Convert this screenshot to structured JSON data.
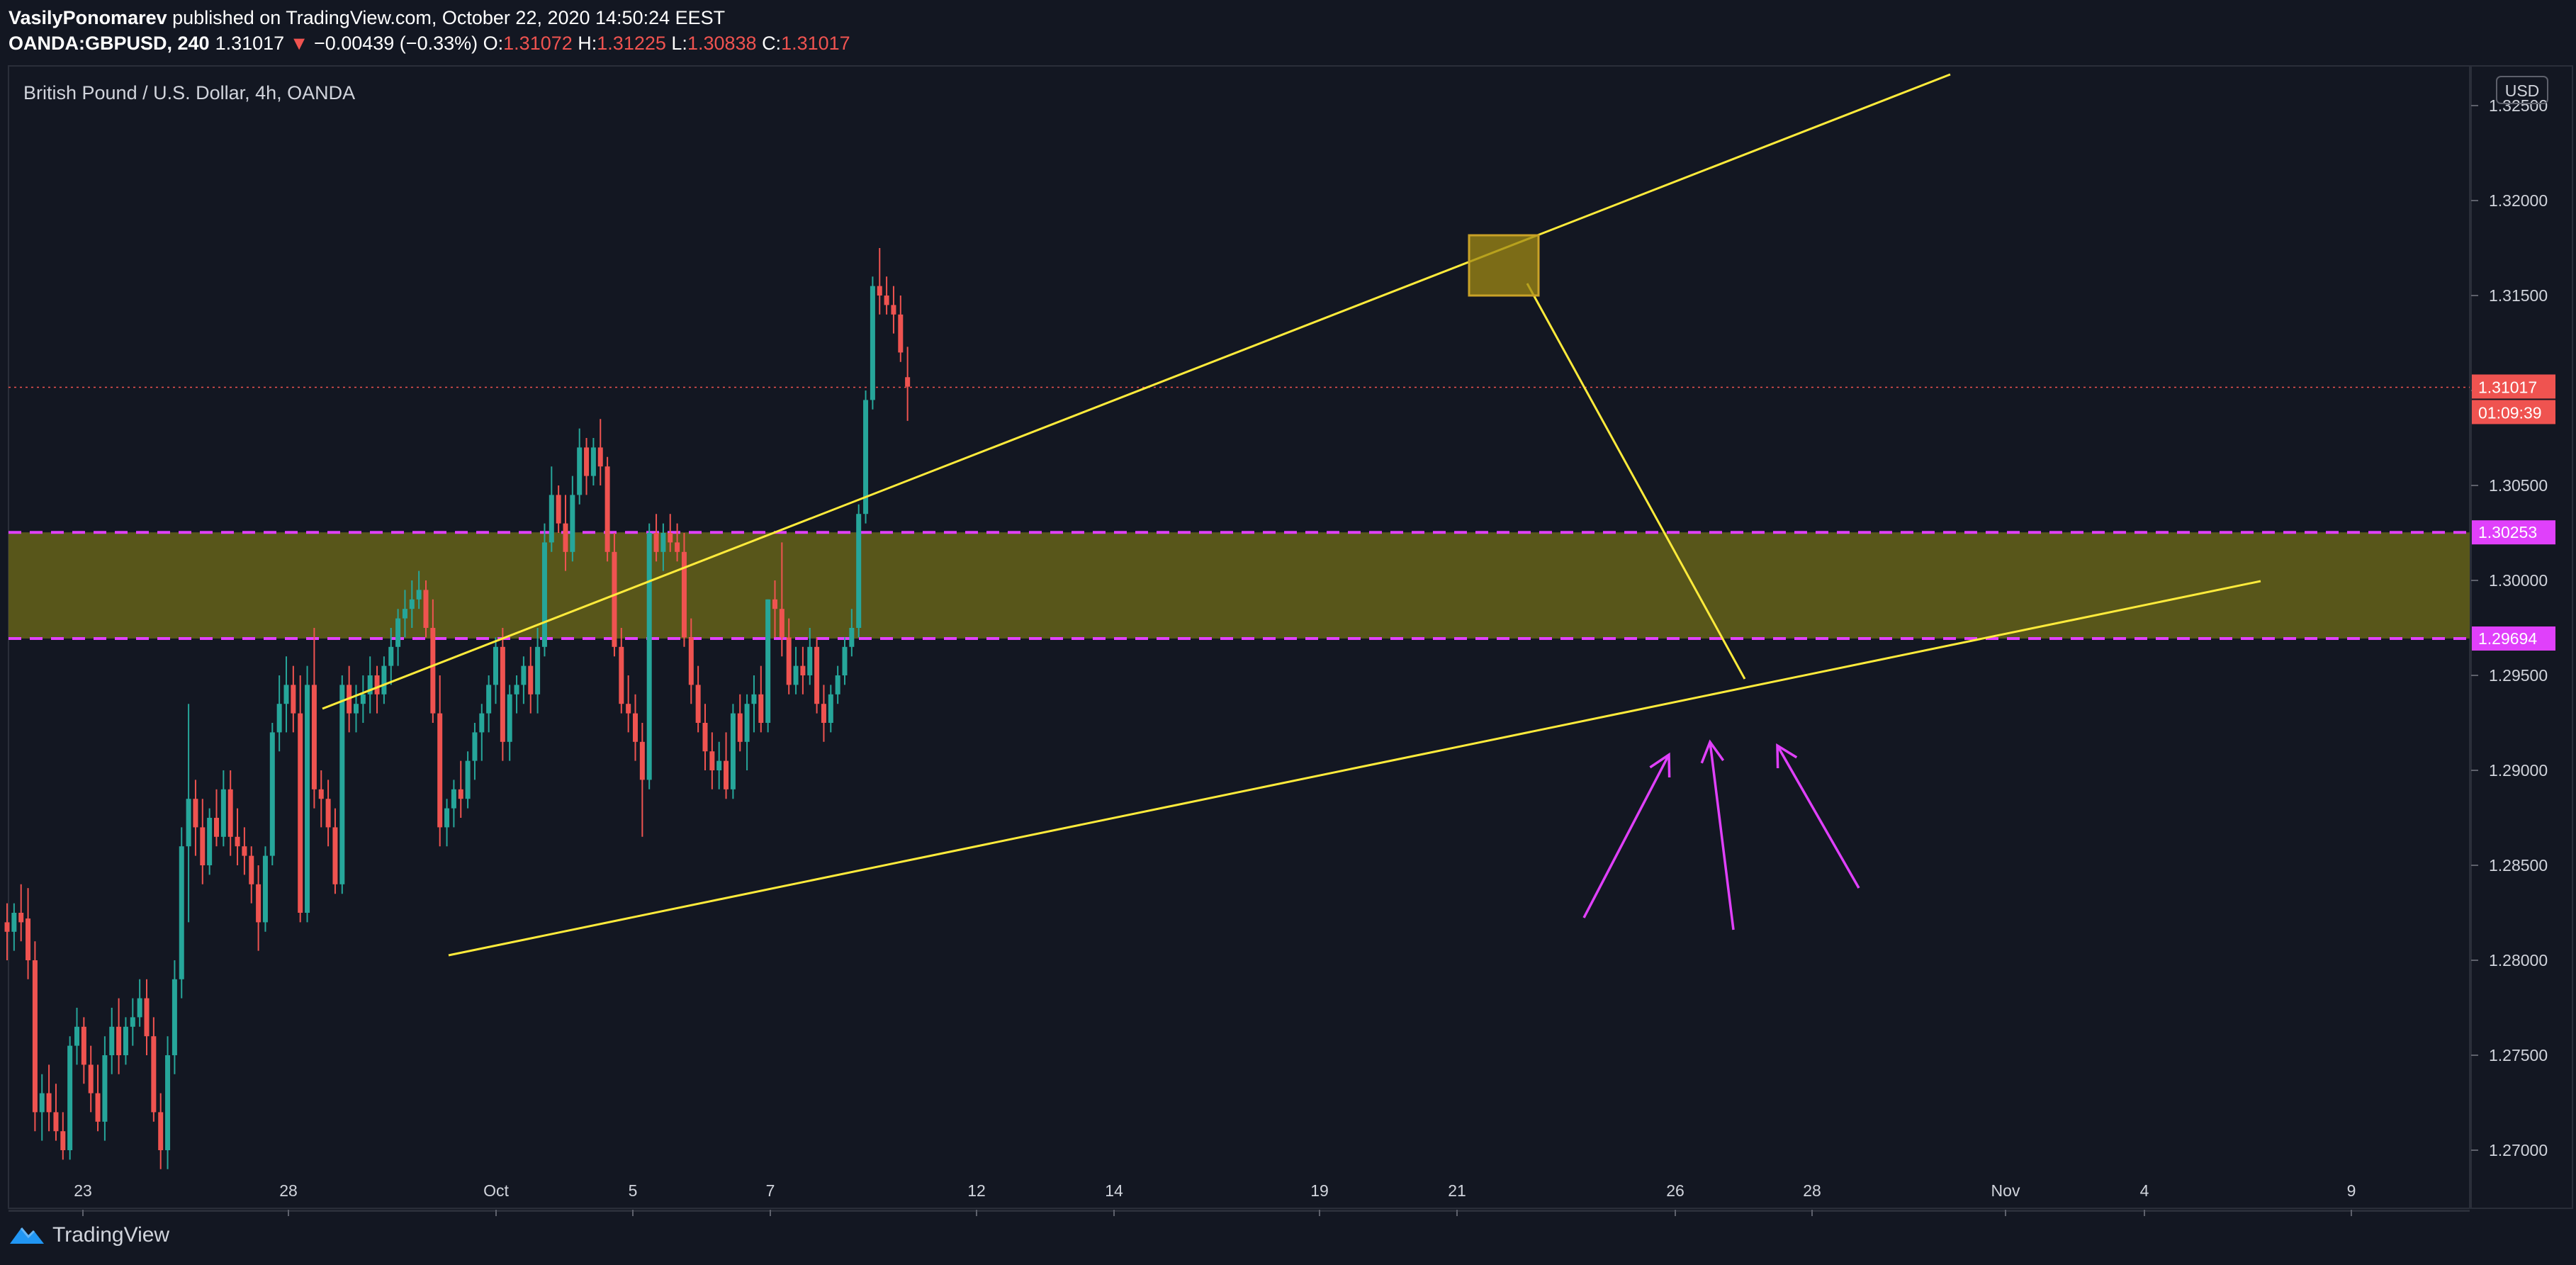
{
  "header": {
    "author": "VasilyPonomarev",
    "published_text": "published on TradingView.com, October 22, 2020 14:50:24 EEST",
    "symbol": "OANDA:GBPUSD, 240",
    "arrow": "▼",
    "change": "−0.00439 (−0.33%)",
    "o_label": "O:",
    "o_value": "1.31072",
    "h_label": "H:",
    "h_value": "1.31225",
    "l_label": "L:",
    "l_value": "1.30838",
    "c_label": "C:",
    "c_value": "1.31017"
  },
  "chart": {
    "title": "British Pound / U.S. Dollar, 4h, OANDA",
    "currency": "USD",
    "price_label": "1.31017",
    "countdown": "01:09:39",
    "zone_top_label": "1.30253",
    "zone_bottom_label": "1.29694"
  },
  "footer": {
    "brand": "TradingView"
  },
  "colors": {
    "background": "#131722",
    "up": "#26a69a",
    "down": "#ef5350",
    "zone_fill": "#5c5a1a",
    "zone_line": "#e040fb",
    "trendline": "#ffeb3b",
    "arrows": "#e040fb",
    "box": "#a08a14"
  },
  "chart_data": {
    "type": "candlestick",
    "y_axis": {
      "ticks": [
        "1.32500",
        "1.32000",
        "1.31500",
        "1.31000",
        "1.30500",
        "1.30000",
        "1.29500",
        "1.29000",
        "1.28500",
        "1.28000",
        "1.27500",
        "1.27000"
      ],
      "range": [
        1.2685,
        1.3285
      ]
    },
    "x_axis": {
      "tick_labels": [
        "23",
        "28",
        "Oct",
        "5",
        "7",
        "12",
        "14",
        "19",
        "21",
        "26",
        "28",
        "Nov",
        "4",
        "9"
      ]
    },
    "last_price": 1.31017,
    "zone": [
      1.29694,
      1.30253
    ],
    "wedge_upper": [
      {
        "x": "Sep 29",
        "y": 1.2935
      },
      {
        "x": "Oct 26",
        "y": 1.3265
      }
    ],
    "wedge_lower": [
      {
        "x": "Oct 1",
        "y": 1.2805
      },
      {
        "x": "Nov 6",
        "y": 1.3
      }
    ],
    "projection": [
      {
        "x": "Oct 22",
        "y": 1.3155
      },
      {
        "x": "Oct 26",
        "y": 1.295
      }
    ],
    "series": [
      {
        "ohlc": [
          [
            1.282,
            1.283,
            1.28,
            1.2815
          ],
          [
            1.2815,
            1.283,
            1.2805,
            1.2825
          ],
          [
            1.2825,
            1.284,
            1.281,
            1.282
          ],
          [
            1.2822,
            1.2838,
            1.279,
            1.28
          ],
          [
            1.28,
            1.281,
            1.271,
            1.272
          ],
          [
            1.272,
            1.274,
            1.2705,
            1.273
          ],
          [
            1.273,
            1.2745,
            1.271,
            1.272
          ],
          [
            1.272,
            1.2735,
            1.2705,
            1.271
          ],
          [
            1.271,
            1.272,
            1.2695,
            1.27
          ],
          [
            1.27,
            1.276,
            1.2695,
            1.2755
          ],
          [
            1.2755,
            1.2775,
            1.2745,
            1.2765
          ],
          [
            1.2765,
            1.277,
            1.2735,
            1.2745
          ],
          [
            1.2745,
            1.2755,
            1.272,
            1.273
          ],
          [
            1.273,
            1.2745,
            1.271,
            1.2715
          ],
          [
            1.2715,
            1.276,
            1.2705,
            1.275
          ],
          [
            1.275,
            1.2775,
            1.274,
            1.2765
          ],
          [
            1.2765,
            1.278,
            1.274,
            1.275
          ],
          [
            1.275,
            1.277,
            1.2745,
            1.2765
          ],
          [
            1.2765,
            1.278,
            1.2755,
            1.277
          ],
          [
            1.277,
            1.279,
            1.2765,
            1.278
          ],
          [
            1.278,
            1.279,
            1.275,
            1.276
          ],
          [
            1.276,
            1.277,
            1.2715,
            1.272
          ],
          [
            1.272,
            1.273,
            1.269,
            1.27
          ],
          [
            1.27,
            1.276,
            1.269,
            1.275
          ],
          [
            1.275,
            1.28,
            1.274,
            1.279
          ],
          [
            1.279,
            1.287,
            1.278,
            1.286
          ],
          [
            1.286,
            1.2935,
            1.282,
            1.2885
          ],
          [
            1.2885,
            1.2895,
            1.2855,
            1.287
          ],
          [
            1.287,
            1.2885,
            1.284,
            1.285
          ],
          [
            1.285,
            1.288,
            1.2845,
            1.2875
          ],
          [
            1.2875,
            1.289,
            1.286,
            1.2865
          ],
          [
            1.2865,
            1.29,
            1.286,
            1.289
          ],
          [
            1.289,
            1.29,
            1.2855,
            1.2865
          ],
          [
            1.2865,
            1.288,
            1.285,
            1.286
          ],
          [
            1.286,
            1.287,
            1.2845,
            1.2855
          ],
          [
            1.2855,
            1.286,
            1.283,
            1.284
          ],
          [
            1.284,
            1.285,
            1.2805,
            1.282
          ],
          [
            1.282,
            1.286,
            1.2815,
            1.2855
          ],
          [
            1.2855,
            1.2925,
            1.285,
            1.292
          ],
          [
            1.292,
            1.295,
            1.291,
            1.2935
          ],
          [
            1.2935,
            1.296,
            1.292,
            1.2945
          ],
          [
            1.2945,
            1.2955,
            1.292,
            1.293
          ],
          [
            1.293,
            1.295,
            1.282,
            1.2825
          ],
          [
            1.2825,
            1.2955,
            1.282,
            1.2945
          ],
          [
            1.2945,
            1.2975,
            1.288,
            1.289
          ],
          [
            1.289,
            1.29,
            1.287,
            1.2885
          ],
          [
            1.2885,
            1.2895,
            1.286,
            1.287
          ],
          [
            1.287,
            1.288,
            1.2835,
            1.284
          ],
          [
            1.284,
            1.295,
            1.2835,
            1.2945
          ],
          [
            1.2945,
            1.2955,
            1.292,
            1.293
          ],
          [
            1.293,
            1.2945,
            1.292,
            1.2935
          ],
          [
            1.2935,
            1.295,
            1.2925,
            1.294
          ],
          [
            1.294,
            1.296,
            1.293,
            1.295
          ],
          [
            1.295,
            1.2955,
            1.293,
            1.294
          ],
          [
            1.294,
            1.296,
            1.2935,
            1.2955
          ],
          [
            1.2955,
            1.2975,
            1.2945,
            1.2965
          ],
          [
            1.2965,
            1.2985,
            1.2955,
            1.298
          ],
          [
            1.298,
            1.2995,
            1.297,
            1.2985
          ],
          [
            1.2985,
            1.3,
            1.2975,
            1.299
          ],
          [
            1.299,
            1.3005,
            1.2985,
            1.2995
          ],
          [
            1.2995,
            1.3,
            1.297,
            1.2975
          ],
          [
            1.2975,
            1.299,
            1.2925,
            1.293
          ],
          [
            1.293,
            1.295,
            1.286,
            1.287
          ],
          [
            1.287,
            1.2885,
            1.286,
            1.288
          ],
          [
            1.288,
            1.2895,
            1.287,
            1.289
          ],
          [
            1.289,
            1.2905,
            1.2875,
            1.2885
          ],
          [
            1.2885,
            1.291,
            1.288,
            1.2905
          ],
          [
            1.2905,
            1.2925,
            1.2895,
            1.292
          ],
          [
            1.292,
            1.2935,
            1.2905,
            1.293
          ],
          [
            1.293,
            1.295,
            1.292,
            1.2945
          ],
          [
            1.2945,
            1.297,
            1.2935,
            1.2965
          ],
          [
            1.2965,
            1.2975,
            1.2905,
            1.2915
          ],
          [
            1.2915,
            1.2945,
            1.2905,
            1.294
          ],
          [
            1.294,
            1.295,
            1.293,
            1.2945
          ],
          [
            1.2945,
            1.296,
            1.2935,
            1.2955
          ],
          [
            1.2955,
            1.2965,
            1.293,
            1.294
          ],
          [
            1.294,
            1.2975,
            1.293,
            1.2965
          ],
          [
            1.2965,
            1.303,
            1.296,
            1.302
          ],
          [
            1.302,
            1.306,
            1.3015,
            1.3045
          ],
          [
            1.3045,
            1.305,
            1.3025,
            1.303
          ],
          [
            1.303,
            1.3045,
            1.3005,
            1.3015
          ],
          [
            1.3015,
            1.3055,
            1.301,
            1.3045
          ],
          [
            1.3045,
            1.308,
            1.304,
            1.307
          ],
          [
            1.307,
            1.3075,
            1.3045,
            1.3055
          ],
          [
            1.3055,
            1.3075,
            1.305,
            1.307
          ],
          [
            1.307,
            1.3085,
            1.305,
            1.306
          ],
          [
            1.306,
            1.3065,
            1.301,
            1.3015
          ],
          [
            1.3015,
            1.3025,
            1.296,
            1.2965
          ],
          [
            1.2965,
            1.2975,
            1.293,
            1.2935
          ],
          [
            1.2935,
            1.295,
            1.292,
            1.293
          ],
          [
            1.293,
            1.294,
            1.2905,
            1.2915
          ],
          [
            1.2915,
            1.2925,
            1.2865,
            1.2895
          ],
          [
            1.2895,
            1.303,
            1.289,
            1.3025
          ],
          [
            1.3025,
            1.3035,
            1.301,
            1.3015
          ],
          [
            1.3015,
            1.303,
            1.3005,
            1.3025
          ],
          [
            1.3025,
            1.3035,
            1.3015,
            1.302
          ],
          [
            1.302,
            1.303,
            1.301,
            1.3015
          ],
          [
            1.3015,
            1.3025,
            1.2965,
            1.297
          ],
          [
            1.297,
            1.298,
            1.2935,
            1.2945
          ],
          [
            1.2945,
            1.2955,
            1.292,
            1.2925
          ],
          [
            1.2925,
            1.2935,
            1.29,
            1.291
          ],
          [
            1.291,
            1.292,
            1.289,
            1.29
          ],
          [
            1.29,
            1.2915,
            1.289,
            1.2905
          ],
          [
            1.2905,
            1.292,
            1.2885,
            1.289
          ],
          [
            1.289,
            1.2935,
            1.2885,
            1.293
          ],
          [
            1.293,
            1.294,
            1.291,
            1.2915
          ],
          [
            1.2915,
            1.294,
            1.29,
            1.2935
          ],
          [
            1.2935,
            1.295,
            1.292,
            1.294
          ],
          [
            1.294,
            1.2955,
            1.292,
            1.2925
          ],
          [
            1.2925,
            1.299,
            1.292,
            1.299
          ],
          [
            1.299,
            1.3,
            1.297,
            1.2985
          ],
          [
            1.2985,
            1.302,
            1.296,
            1.297
          ],
          [
            1.297,
            1.298,
            1.294,
            1.2945
          ],
          [
            1.2945,
            1.2965,
            1.294,
            1.2955
          ],
          [
            1.2955,
            1.2965,
            1.294,
            1.295
          ],
          [
            1.295,
            1.2975,
            1.2945,
            1.2965
          ],
          [
            1.2965,
            1.297,
            1.293,
            1.2935
          ],
          [
            1.2935,
            1.2945,
            1.2915,
            1.2925
          ],
          [
            1.2925,
            1.2945,
            1.292,
            1.294
          ],
          [
            1.294,
            1.2955,
            1.2935,
            1.295
          ],
          [
            1.295,
            1.297,
            1.2945,
            1.2965
          ],
          [
            1.2965,
            1.2985,
            1.296,
            1.2975
          ],
          [
            1.2975,
            1.304,
            1.297,
            1.3035
          ],
          [
            1.3035,
            1.31,
            1.303,
            1.3095
          ],
          [
            1.3095,
            1.316,
            1.309,
            1.3155
          ],
          [
            1.3155,
            1.3175,
            1.314,
            1.315
          ],
          [
            1.315,
            1.316,
            1.314,
            1.3145
          ],
          [
            1.3145,
            1.3155,
            1.313,
            1.314
          ],
          [
            1.314,
            1.315,
            1.3115,
            1.312
          ],
          [
            1.3107,
            1.3123,
            1.3084,
            1.3102
          ]
        ]
      }
    ]
  }
}
